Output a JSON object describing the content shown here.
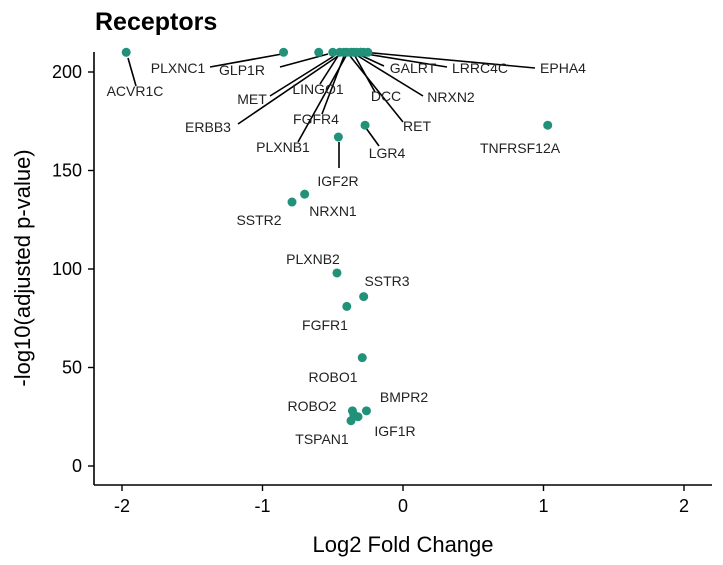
{
  "chart_data": {
    "type": "scatter",
    "title": "Receptors",
    "xlabel": "Log2 Fold Change",
    "ylabel": "-log10(adjusted p-value)",
    "xlim": [
      -2.2,
      2.2
    ],
    "ylim": [
      -9,
      212
    ],
    "x_ticks": [
      -2,
      -1,
      0,
      1,
      2
    ],
    "y_ticks": [
      0,
      50,
      100,
      150,
      200
    ],
    "x_tick_labels": [
      "-2",
      "-1",
      "0",
      "1",
      "2"
    ],
    "y_tick_labels": [
      "0",
      "50",
      "100",
      "150",
      "200"
    ],
    "grid": false,
    "point_color": "#21917a",
    "points": [
      {
        "label": "ACVR1C",
        "x": -1.97,
        "y": 210
      },
      {
        "label": "PLXNC1",
        "x": -0.85,
        "y": 210
      },
      {
        "label": "GLP1R",
        "x": -0.6,
        "y": 210
      },
      {
        "label": "MET",
        "x": -0.5,
        "y": 210
      },
      {
        "label": "ERBB3",
        "x": -0.45,
        "y": 210
      },
      {
        "label": "LINGO1",
        "x": -0.4,
        "y": 210
      },
      {
        "label": "FGFR4",
        "x": -0.37,
        "y": 210
      },
      {
        "label": "PLXNB1",
        "x": -0.42,
        "y": 210
      },
      {
        "label": "GALRT",
        "x": -0.3,
        "y": 210
      },
      {
        "label": "LRRC4C",
        "x": -0.28,
        "y": 210
      },
      {
        "label": "EPHA4",
        "x": -0.25,
        "y": 210
      },
      {
        "label": "DCC",
        "x": -0.33,
        "y": 210
      },
      {
        "label": "NRXN2",
        "x": -0.3,
        "y": 210
      },
      {
        "label": "RET",
        "x": -0.35,
        "y": 210
      },
      {
        "label": "LGR4",
        "x": -0.27,
        "y": 173
      },
      {
        "label": "TNFRSF12A",
        "x": 1.03,
        "y": 173
      },
      {
        "label": "IGF2R",
        "x": -0.46,
        "y": 167
      },
      {
        "label": "NRXN1",
        "x": -0.7,
        "y": 138
      },
      {
        "label": "SSTR2",
        "x": -0.79,
        "y": 134
      },
      {
        "label": "PLXNB2",
        "x": -0.47,
        "y": 98
      },
      {
        "label": "SSTR3",
        "x": -0.28,
        "y": 86
      },
      {
        "label": "FGFR1",
        "x": -0.4,
        "y": 81
      },
      {
        "label": "ROBO1",
        "x": -0.29,
        "y": 55
      },
      {
        "label": "BMPR2",
        "x": -0.26,
        "y": 28
      },
      {
        "label": "ROBO2",
        "x": -0.36,
        "y": 28
      },
      {
        "label": "IGF1R",
        "x": -0.32,
        "y": 25
      },
      {
        "label": "TSPAN1",
        "x": -0.37,
        "y": 23
      },
      {
        "label": "",
        "x": -0.35,
        "y": 26
      }
    ]
  }
}
